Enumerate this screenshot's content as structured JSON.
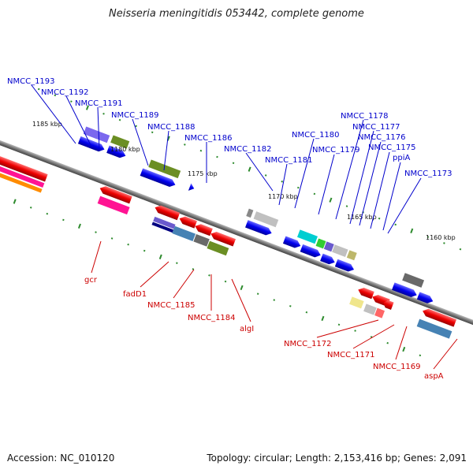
{
  "title": "Neisseria meningitidis 053442, complete genome",
  "footer": {
    "accession": "Accession: NC_010120",
    "summary": "Topology: circular; Length: 2,153,416 bp; Genes: 2,091"
  },
  "scale_labels": [
    "1185 kbp",
    "1180 kbp",
    "1175 kbp",
    "1170 kbp",
    "1165 kbp",
    "1160 kbp"
  ],
  "top_gene_labels": [
    "NMCC_1193",
    "NMCC_1192",
    "NMCC_1191",
    "NMCC_1189",
    "NMCC_1188",
    "NMCC_1186",
    "NMCC_1182",
    "NMCC_1181",
    "NMCC_1180",
    "NMCC_1179",
    "NMCC_1178",
    "NMCC_1177",
    "NMCC_1176",
    "NMCC_1175",
    "ppiA",
    "NMCC_1173"
  ],
  "bottom_gene_labels": [
    "gcr",
    "fadD1",
    "NMCC_1185",
    "NMCC_1184",
    "algI",
    "NMCC_1172",
    "NMCC_1171",
    "NMCC_1169",
    "aspA"
  ],
  "colors": {
    "top_label": "#0000cc",
    "bottom_label": "#cc0000",
    "forward_gene": "#1a1aee",
    "reverse_gene": "#ee1111",
    "tick": "#2e8b2e",
    "backbone": "#888888"
  }
}
